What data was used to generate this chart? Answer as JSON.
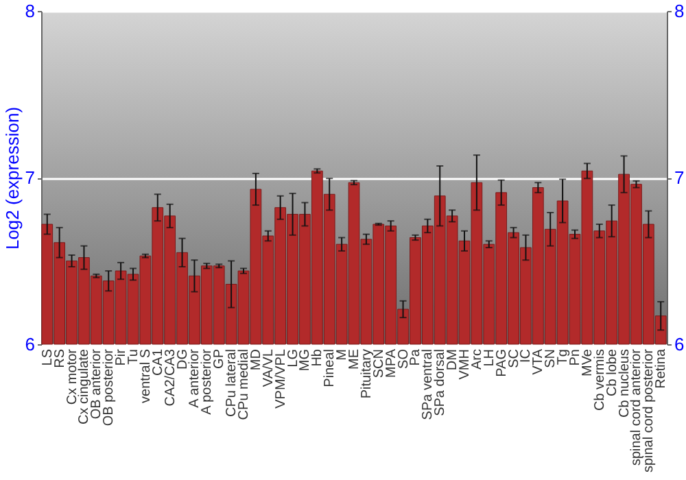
{
  "chart_data": {
    "type": "bar",
    "ylabel": "Log2 (expression)",
    "categories": [
      "LS",
      "RS",
      "Cx motor",
      "Cx cingulate",
      "OB anterior",
      "OB posterior",
      "Pir",
      "Tu",
      "ventral S",
      "CA1",
      "CA2/CA3",
      "DG",
      "A anterior",
      "A posterior",
      "GP",
      "CPu lateral",
      "CPu medial",
      "MD",
      "VA/VL",
      "VPM/VPL",
      "LG",
      "MG",
      "Hb",
      "Pineal",
      "M",
      "ME",
      "Pituitary",
      "SCN",
      "MPA",
      "SO",
      "Pa",
      "SPa ventral",
      "SPa dorsal",
      "DM",
      "VMH",
      "Arc",
      "LH",
      "PAG",
      "SC",
      "IC",
      "VTA",
      "SN",
      "Tg",
      "Pn",
      "MVe",
      "Cb vermis",
      "Cb lobe",
      "Cb nucleus",
      "spinal cord anterior",
      "spinal cord posterior",
      "Retina"
    ],
    "values": [
      6.72,
      6.61,
      6.5,
      6.52,
      6.41,
      6.38,
      6.44,
      6.42,
      6.53,
      6.82,
      6.77,
      6.55,
      6.41,
      6.47,
      6.47,
      6.36,
      6.44,
      6.93,
      6.65,
      6.82,
      6.78,
      6.78,
      7.04,
      6.9,
      6.6,
      6.97,
      6.63,
      6.72,
      6.71,
      6.21,
      6.64,
      6.71,
      6.89,
      6.77,
      6.62,
      6.97,
      6.6,
      6.91,
      6.67,
      6.58,
      6.94,
      6.69,
      6.86,
      6.66,
      7.04,
      6.68,
      6.74,
      7.02,
      6.96,
      6.72,
      6.17
    ],
    "errors": [
      0.06,
      0.09,
      0.035,
      0.07,
      0.01,
      0.06,
      0.05,
      0.035,
      0.01,
      0.08,
      0.07,
      0.085,
      0.095,
      0.015,
      0.01,
      0.14,
      0.015,
      0.095,
      0.03,
      0.07,
      0.125,
      0.07,
      0.012,
      0.095,
      0.04,
      0.012,
      0.03,
      0.005,
      0.03,
      0.05,
      0.015,
      0.04,
      0.18,
      0.035,
      0.06,
      0.165,
      0.02,
      0.075,
      0.03,
      0.075,
      0.03,
      0.1,
      0.13,
      0.025,
      0.045,
      0.04,
      0.095,
      0.11,
      0.02,
      0.08,
      0.085
    ],
    "color": "#b22a2a",
    "ylim": [
      6,
      8
    ],
    "yticks": [
      6,
      7,
      8
    ],
    "y2lim": [
      6,
      8
    ],
    "y2ticks": [
      6,
      7,
      8
    ],
    "grid": "y"
  }
}
